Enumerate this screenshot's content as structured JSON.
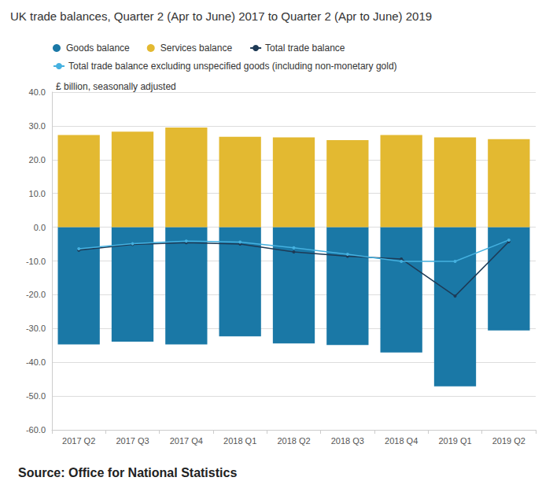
{
  "chart_data": {
    "type": "bar",
    "title": "UK trade balances, Quarter 2 (Apr to June) 2017 to Quarter 2 (Apr to June) 2019",
    "subtitle": "£ billion, seasonally adjusted",
    "source": "Source: Office for National Statistics",
    "categories": [
      "2017 Q2",
      "2017 Q3",
      "2017 Q4",
      "2018 Q1",
      "2018 Q2",
      "2018 Q3",
      "2018 Q4",
      "2019 Q1",
      "2019 Q2"
    ],
    "stacked": true,
    "grid": true,
    "legend": "top",
    "series": [
      {
        "name": "Goods balance",
        "type": "bar",
        "color": "#1a78a6",
        "values": [
          -34.7,
          -33.9,
          -34.7,
          -32.3,
          -34.4,
          -34.9,
          -37.1,
          -47.1,
          -30.6
        ]
      },
      {
        "name": "Services balance",
        "type": "bar",
        "color": "#e3b931",
        "values": [
          27.3,
          28.3,
          29.5,
          26.8,
          26.6,
          25.8,
          27.3,
          26.6,
          26.1
        ]
      },
      {
        "name": "Total trade balance",
        "type": "line",
        "color": "#1e3a55",
        "marker": "circle",
        "values": [
          -6.8,
          -5.1,
          -4.6,
          -5.0,
          -7.3,
          -8.6,
          -9.4,
          -20.4,
          -4.3
        ]
      },
      {
        "name": "Total trade balance excluding unspecified goods (including non-monetary gold)",
        "type": "line",
        "color": "#45b1e0",
        "marker": "circle",
        "values": [
          -6.4,
          -4.9,
          -4.1,
          -4.4,
          -6.1,
          -8.0,
          -10.1,
          -10.1,
          -3.8
        ]
      }
    ],
    "ylim": [
      -60,
      40
    ],
    "yticks": [
      {
        "value": -60,
        "label": "-60.0"
      },
      {
        "value": -50,
        "label": "-50.0"
      },
      {
        "value": -40,
        "label": "-40.0"
      },
      {
        "value": -30,
        "label": "-30.0"
      },
      {
        "value": -20,
        "label": "-20.0"
      },
      {
        "value": -10,
        "label": "-10.0"
      },
      {
        "value": 0,
        "label": "0.0"
      },
      {
        "value": 10,
        "label": "10.0"
      },
      {
        "value": 20,
        "label": "20.0"
      },
      {
        "value": 30,
        "label": "30.0"
      },
      {
        "value": 40,
        "label": "40.0"
      }
    ]
  }
}
